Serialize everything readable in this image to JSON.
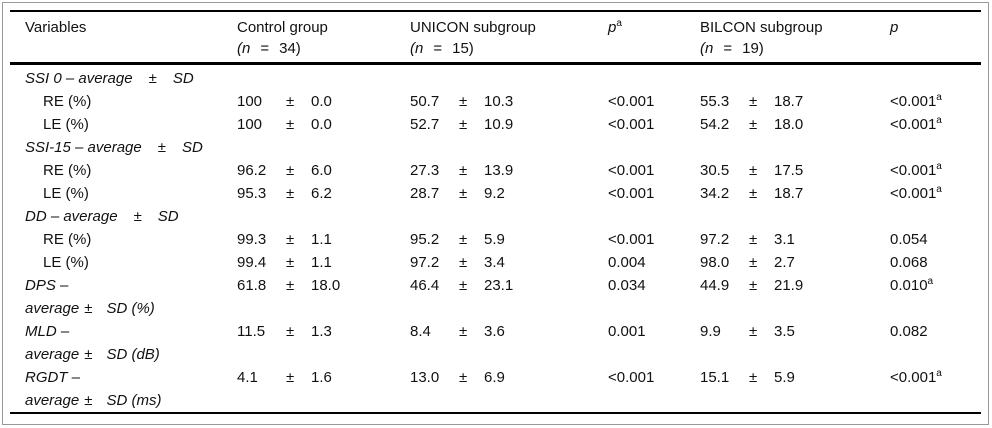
{
  "colors": {
    "text": "#111111",
    "rule": "#000000",
    "frame": "#999999",
    "bg": "#ffffff"
  },
  "table": {
    "columns": [
      {
        "title": "Variables"
      },
      {
        "title": "Control group",
        "n_open": "(n",
        "n_eq": "=",
        "n_close": "34)"
      },
      {
        "title": "UNICON subgroup",
        "n_open": "(n",
        "n_eq": "=",
        "n_close": "15)"
      },
      {
        "title": "p",
        "sup": "a"
      },
      {
        "title": "BILCON subgroup",
        "n_open": "(n",
        "n_eq": "=",
        "n_close": "19)"
      },
      {
        "title": "p",
        "sup": ""
      }
    ],
    "rows": [
      {
        "type": "section",
        "label": "SSI 0 – average",
        "pm": "±",
        "unit": "SD"
      },
      {
        "type": "data",
        "label": "RE (%)",
        "control": {
          "m": "100",
          "pm": "±",
          "sd": "0.0"
        },
        "unicon": {
          "m": "50.7",
          "pm": "±",
          "sd": "10.3"
        },
        "p1": {
          "v": "<0.001",
          "sup": ""
        },
        "bilcon": {
          "m": "55.3",
          "pm": "±",
          "sd": "18.7"
        },
        "p2": {
          "v": "<0.001",
          "sup": "a"
        }
      },
      {
        "type": "data",
        "label": "LE (%)",
        "control": {
          "m": "100",
          "pm": "±",
          "sd": "0.0"
        },
        "unicon": {
          "m": "52.7",
          "pm": "±",
          "sd": "10.9"
        },
        "p1": {
          "v": "<0.001",
          "sup": ""
        },
        "bilcon": {
          "m": "54.2",
          "pm": "±",
          "sd": "18.0"
        },
        "p2": {
          "v": "<0.001",
          "sup": "a"
        }
      },
      {
        "type": "section",
        "label": "SSI-15 – average",
        "pm": "±",
        "unit": "SD"
      },
      {
        "type": "data",
        "label": "RE (%)",
        "control": {
          "m": "96.2",
          "pm": "±",
          "sd": "6.0"
        },
        "unicon": {
          "m": "27.3",
          "pm": "±",
          "sd": "13.9"
        },
        "p1": {
          "v": "<0.001",
          "sup": ""
        },
        "bilcon": {
          "m": "30.5",
          "pm": "±",
          "sd": "17.5"
        },
        "p2": {
          "v": "<0.001",
          "sup": "a"
        }
      },
      {
        "type": "data",
        "label": "LE (%)",
        "control": {
          "m": "95.3",
          "pm": "±",
          "sd": "6.2"
        },
        "unicon": {
          "m": "28.7",
          "pm": "±",
          "sd": "9.2"
        },
        "p1": {
          "v": "<0.001",
          "sup": ""
        },
        "bilcon": {
          "m": "34.2",
          "pm": "±",
          "sd": "18.7"
        },
        "p2": {
          "v": "<0.001",
          "sup": "a"
        }
      },
      {
        "type": "section",
        "label": "DD – average",
        "pm": "±",
        "unit": "SD"
      },
      {
        "type": "data",
        "label": "RE (%)",
        "control": {
          "m": "99.3",
          "pm": "±",
          "sd": "1.1"
        },
        "unicon": {
          "m": "95.2",
          "pm": "±",
          "sd": "5.9"
        },
        "p1": {
          "v": "<0.001",
          "sup": ""
        },
        "bilcon": {
          "m": "97.2",
          "pm": "±",
          "sd": "3.1"
        },
        "p2": {
          "v": "0.054",
          "sup": ""
        }
      },
      {
        "type": "data",
        "label": "LE (%)",
        "control": {
          "m": "99.4",
          "pm": "±",
          "sd": "1.1"
        },
        "unicon": {
          "m": "97.2",
          "pm": "±",
          "sd": "3.4"
        },
        "p1": {
          "v": "0.004",
          "sup": ""
        },
        "bilcon": {
          "m": "98.0",
          "pm": "±",
          "sd": "2.7"
        },
        "p2": {
          "v": "0.068",
          "sup": ""
        }
      },
      {
        "type": "wrap",
        "label_line1": "DPS –",
        "l2_text": "average",
        "l2_pm": "±",
        "l2_unit": "SD (%)",
        "control": {
          "m": "61.8",
          "pm": "±",
          "sd": "18.0"
        },
        "unicon": {
          "m": "46.4",
          "pm": "±",
          "sd": "23.1"
        },
        "p1": {
          "v": "0.034",
          "sup": ""
        },
        "bilcon": {
          "m": "44.9",
          "pm": "±",
          "sd": "21.9"
        },
        "p2": {
          "v": "0.010",
          "sup": "a"
        }
      },
      {
        "type": "wrap",
        "label_line1": "MLD –",
        "l2_text": "average",
        "l2_pm": "±",
        "l2_unit": "SD (dB)",
        "control": {
          "m": "11.5",
          "pm": "±",
          "sd": "1.3"
        },
        "unicon": {
          "m": "8.4",
          "pm": "±",
          "sd": "3.6"
        },
        "p1": {
          "v": "0.001",
          "sup": ""
        },
        "bilcon": {
          "m": "9.9",
          "pm": "±",
          "sd": "3.5"
        },
        "p2": {
          "v": "0.082",
          "sup": ""
        }
      },
      {
        "type": "wrap",
        "label_line1": "RGDT –",
        "l2_text": "average",
        "l2_pm": "±",
        "l2_unit": "SD (ms)",
        "control": {
          "m": "4.1",
          "pm": "±",
          "sd": "1.6"
        },
        "unicon": {
          "m": "13.0",
          "pm": "±",
          "sd": "6.9"
        },
        "p1": {
          "v": "<0.001",
          "sup": ""
        },
        "bilcon": {
          "m": "15.1",
          "pm": "±",
          "sd": "5.9"
        },
        "p2": {
          "v": "<0.001",
          "sup": "a"
        }
      }
    ]
  }
}
